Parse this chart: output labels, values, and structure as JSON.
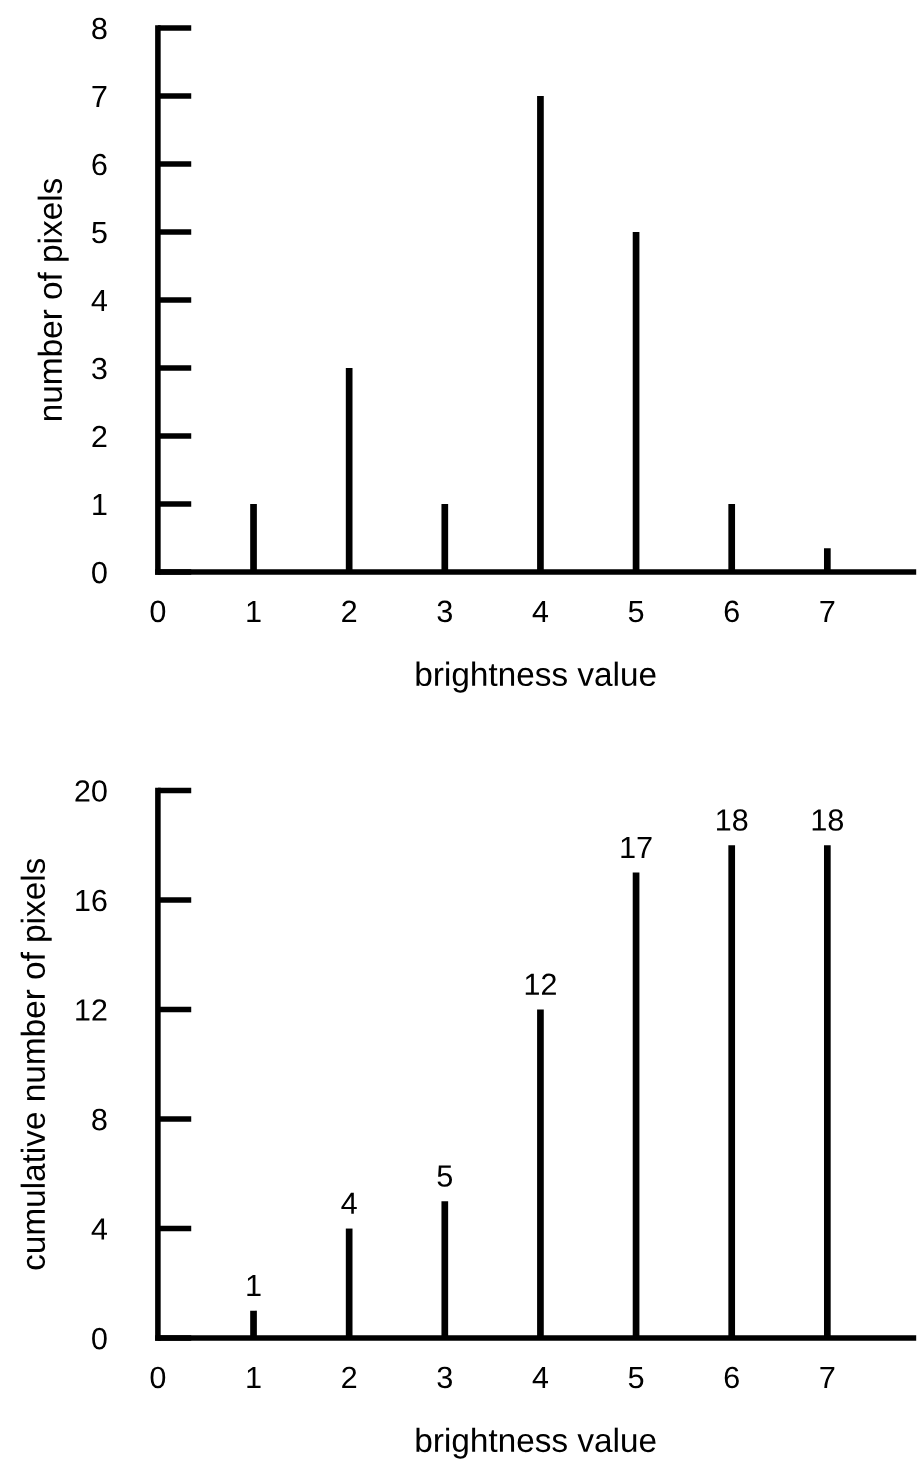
{
  "chart_data": [
    {
      "type": "bar",
      "xlabel": "brightness value",
      "ylabel": "number of pixels",
      "x": [
        1,
        2,
        3,
        4,
        5,
        6,
        7
      ],
      "values": [
        1,
        3,
        1,
        7,
        5,
        1,
        0.35
      ],
      "color": "#000000",
      "xlim": [
        0,
        7.9
      ],
      "xticks": [
        0,
        1,
        2,
        3,
        4,
        5,
        6,
        7
      ],
      "ylim": [
        0,
        8
      ],
      "yticks": [
        0,
        1,
        2,
        3,
        4,
        5,
        6,
        7,
        8
      ],
      "grid": false,
      "legend": false
    },
    {
      "type": "bar",
      "xlabel": "brightness value",
      "ylabel": "cumulative number of pixels",
      "x": [
        1,
        2,
        3,
        4,
        5,
        6,
        7
      ],
      "values": [
        1,
        4,
        5,
        12,
        17,
        18,
        18
      ],
      "color": "#000000",
      "data_labels": true,
      "xlim": [
        0,
        7.9
      ],
      "xticks": [
        0,
        1,
        2,
        3,
        4,
        5,
        6,
        7
      ],
      "ylim": [
        0,
        20
      ],
      "yticks": [
        0,
        4,
        8,
        12,
        16,
        20
      ],
      "grid": false,
      "legend": false
    }
  ]
}
